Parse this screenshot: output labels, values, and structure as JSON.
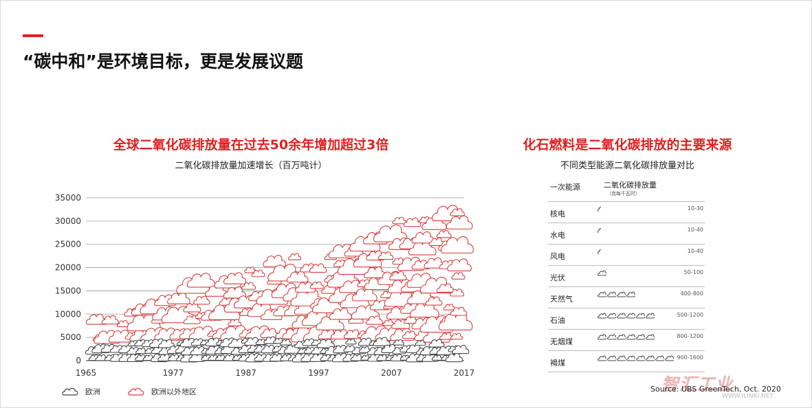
{
  "page": {
    "title": "“碳中和”是环境目标，更是发展议题"
  },
  "left_panel": {
    "heading": "全球二氧化碳排放量在过去50余年增加超过3倍",
    "subheading": "二氧化碳排放量加速增长（百万吨计）"
  },
  "right_panel": {
    "heading": "化石燃料是二氧化碳排放的主要来源",
    "subheading": "不同类型能源二氧化碳排放量对比",
    "table": {
      "col1": "一次能源",
      "col2": "二氧化碳排放量",
      "col2_unit": "（克每千瓦时）",
      "rows": [
        {
          "name": "核电",
          "range": "10-30",
          "clouds": 0.3
        },
        {
          "name": "水电",
          "range": "10-40",
          "clouds": 0.3
        },
        {
          "name": "风电",
          "range": "10-40",
          "clouds": 0.3
        },
        {
          "name": "光伏",
          "range": "50-100",
          "clouds": 1
        },
        {
          "name": "天然气",
          "range": "400-800",
          "clouds": 4
        },
        {
          "name": "石油",
          "range": "500-1200",
          "clouds": 6
        },
        {
          "name": "无烟煤",
          "range": "800-1200",
          "clouds": 6
        },
        {
          "name": "褐煤",
          "range": "900-1600",
          "clouds": 8
        }
      ]
    }
  },
  "legend": {
    "europe": "欧洲",
    "outside_europe": "欧洲以外地区"
  },
  "source": "Source: UBS GreenTech, Oct. 2020",
  "watermark": {
    "text": "智汇工业",
    "url": "WWW.ILINKI.NET"
  },
  "colors": {
    "accent": "#e02020",
    "europe_stroke": "#444444",
    "outside_stroke": "#d63c3c",
    "gridline": "#9a9a9a"
  },
  "chart_data": {
    "type": "area",
    "x_ticks": [
      1965,
      1977,
      1987,
      1997,
      2007,
      2017
    ],
    "xlim": [
      1965,
      2017
    ],
    "ylim": [
      0,
      35000
    ],
    "y_ticks": [
      0,
      5000,
      10000,
      15000,
      20000,
      25000,
      30000,
      35000
    ],
    "grid": true,
    "legend_position": "bottom-left",
    "series": [
      {
        "name": "欧洲",
        "x": [
          1965,
          1970,
          1975,
          1980,
          1985,
          1990,
          1995,
          2000,
          2005,
          2010,
          2015,
          2017
        ],
        "values": [
          3200,
          3700,
          4000,
          4300,
          4300,
          4400,
          4200,
          4100,
          4200,
          4000,
          3700,
          3700
        ]
      },
      {
        "name": "欧洲以外地区",
        "x": [
          1965,
          1970,
          1975,
          1980,
          1985,
          1990,
          1995,
          2000,
          2005,
          2010,
          2015,
          2017
        ],
        "values": [
          6500,
          9000,
          11000,
          14500,
          15500,
          18000,
          19500,
          21500,
          25500,
          29500,
          31000,
          31500
        ]
      }
    ]
  }
}
